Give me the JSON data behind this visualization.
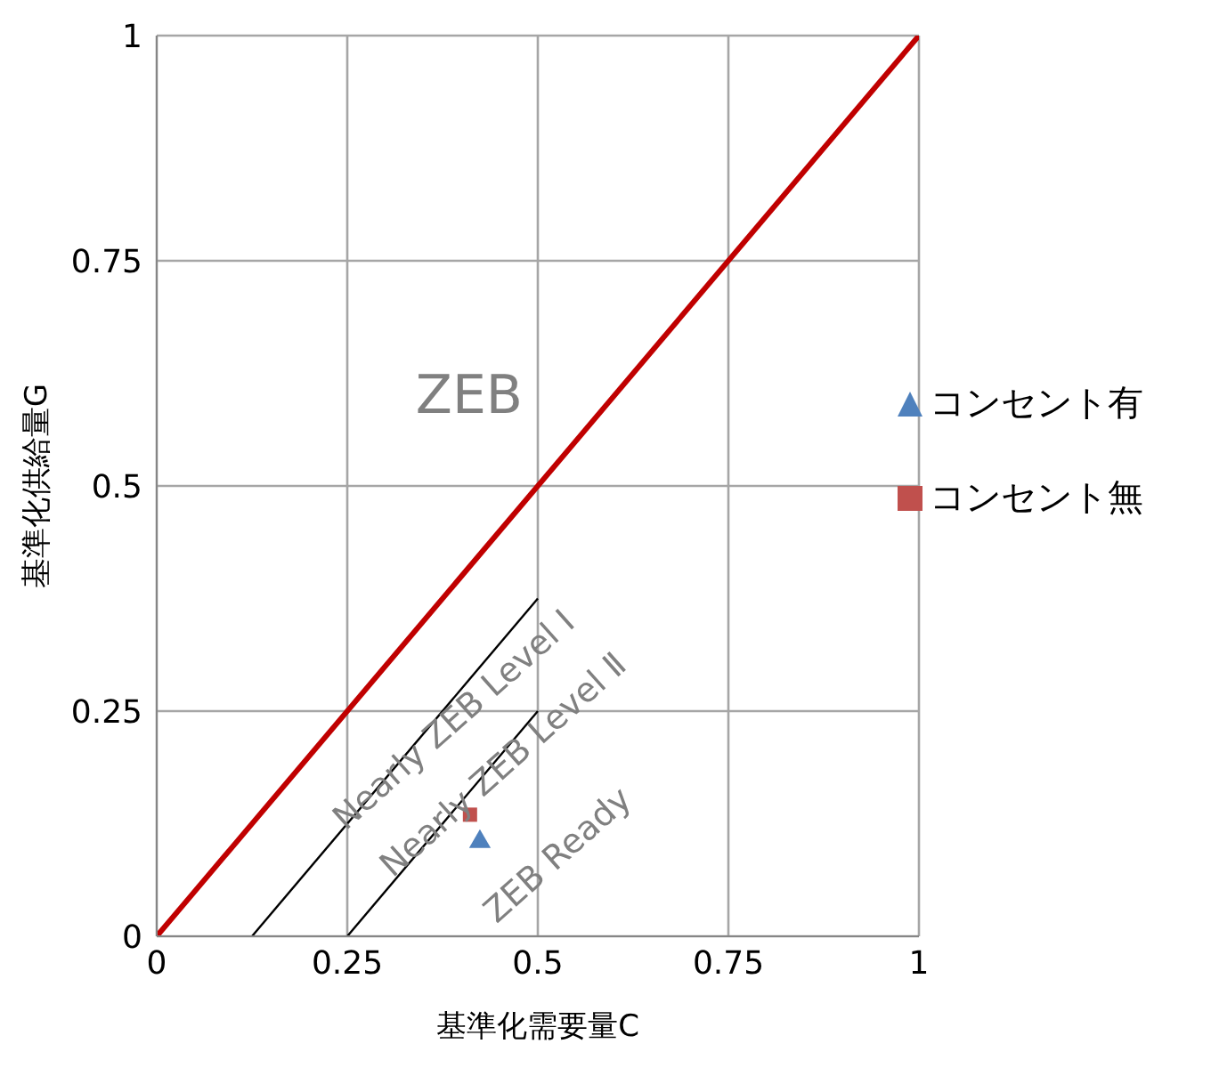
{
  "chart_data": {
    "type": "scatter",
    "xlabel": "基準化需要量C",
    "ylabel": "基準化供給量G",
    "xlim": [
      0,
      1
    ],
    "ylim": [
      0,
      1
    ],
    "xticks": [
      0,
      0.25,
      0.5,
      0.75,
      1
    ],
    "yticks": [
      0,
      0.25,
      0.5,
      0.75,
      1
    ],
    "grid": true,
    "legend": "right",
    "series": [
      {
        "type": "line",
        "color": "#c00000",
        "x": [
          0,
          1
        ],
        "values": [
          0,
          1
        ],
        "marker": "none"
      },
      {
        "type": "line",
        "color": "#000000",
        "x": [
          0.125,
          0.5
        ],
        "values": [
          0,
          0.375
        ],
        "marker": "none"
      },
      {
        "type": "line",
        "color": "#000000",
        "x": [
          0.25,
          0.5
        ],
        "values": [
          0,
          0.25
        ],
        "marker": "none"
      },
      {
        "name": "コンセント有",
        "color": "#4f81bd",
        "x": [
          0.424
        ],
        "values": [
          0.105
        ],
        "marker": "triangle"
      },
      {
        "name": "コンセント無",
        "color": "#c0504d",
        "x": [
          0.411
        ],
        "values": [
          0.135
        ],
        "marker": "square"
      }
    ],
    "annotations": [
      "ZEB",
      "Nearly ZEB Level Ⅰ",
      "Nearly ZEB Level Ⅱ",
      "ZEB Ready"
    ]
  }
}
